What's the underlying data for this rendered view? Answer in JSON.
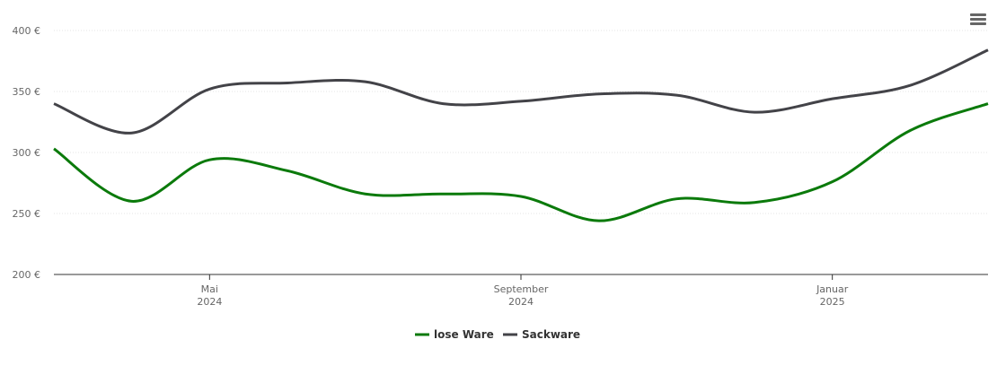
{
  "chart_data": {
    "type": "line",
    "x": [
      "2024-03",
      "2024-04",
      "2024-05",
      "2024-06",
      "2024-07",
      "2024-08",
      "2024-09",
      "2024-10",
      "2024-11",
      "2024-12",
      "2025-01",
      "2025-02",
      "2025-03"
    ],
    "series": [
      {
        "name": "lose Ware",
        "color": "#0b7a0b",
        "values": [
          303,
          260,
          294,
          285,
          266,
          266,
          264,
          244,
          262,
          259,
          276,
          318,
          340
        ]
      },
      {
        "name": "Sackware",
        "color": "#434348",
        "values": [
          340,
          316,
          352,
          357,
          358,
          340,
          342,
          348,
          347,
          333,
          344,
          355,
          384
        ]
      }
    ],
    "xlim": [
      "2024-03",
      "2025-03"
    ],
    "xticks": [
      {
        "value": "2024-05",
        "label": [
          "Mai",
          "2024"
        ]
      },
      {
        "value": "2024-09",
        "label": [
          "September",
          "2024"
        ]
      },
      {
        "value": "2025-01",
        "label": [
          "Januar",
          "2025"
        ]
      }
    ],
    "ylim": [
      200,
      400
    ],
    "yticks": [
      {
        "value": 200,
        "label": "200 €"
      },
      {
        "value": 250,
        "label": "250 €"
      },
      {
        "value": 300,
        "label": "300 €"
      },
      {
        "value": 350,
        "label": "350 €"
      },
      {
        "value": 400,
        "label": "400 €"
      }
    ],
    "grid": true,
    "legend": "bottom"
  }
}
